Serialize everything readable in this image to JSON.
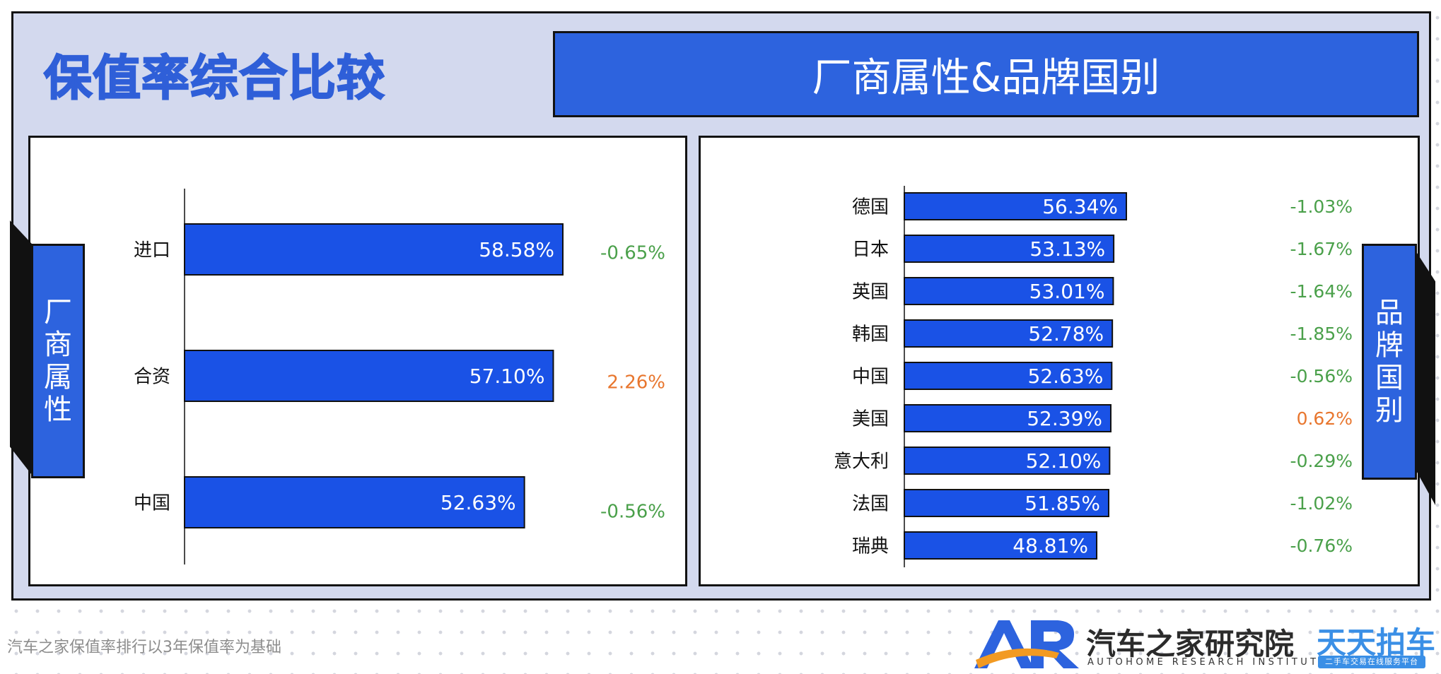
{
  "header": {
    "title": "保值率综合比较",
    "subtitle": "厂商属性&品牌国别"
  },
  "left_tab": [
    "厂",
    "商",
    "属",
    "性"
  ],
  "right_tab": [
    "品",
    "牌",
    "国",
    "别"
  ],
  "colors": {
    "bar": "#1a52e6",
    "accent": "#2d63de",
    "frame_bg": "#d3d9ee",
    "change_negative": "#4aa04a",
    "change_positive": "#e8762e"
  },
  "chart_data": [
    {
      "type": "bar",
      "orientation": "horizontal",
      "categories": [
        "进口",
        "合资",
        "中国"
      ],
      "values": [
        58.58,
        57.1,
        52.63
      ],
      "value_labels": [
        "58.58%",
        "57.10%",
        "52.63%"
      ],
      "changes": [
        "-0.65%",
        "2.26%",
        "-0.56%"
      ],
      "change_values": [
        -0.65,
        2.26,
        -0.56
      ],
      "grid": false,
      "legend": "none"
    },
    {
      "type": "bar",
      "orientation": "horizontal",
      "categories": [
        "德国",
        "日本",
        "英国",
        "韩国",
        "中国",
        "美国",
        "意大利",
        "法国",
        "瑞典"
      ],
      "values": [
        56.34,
        53.13,
        53.01,
        52.78,
        52.63,
        52.39,
        52.1,
        51.85,
        48.81
      ],
      "value_labels": [
        "56.34%",
        "53.13%",
        "53.01%",
        "52.78%",
        "52.63%",
        "52.39%",
        "52.10%",
        "51.85%",
        "48.81%"
      ],
      "changes": [
        "-1.03%",
        "-1.67%",
        "-1.64%",
        "-1.85%",
        "-0.56%",
        "0.62%",
        "-0.29%",
        "-1.02%",
        "-0.76%"
      ],
      "change_values": [
        -1.03,
        -1.67,
        -1.64,
        -1.85,
        -0.56,
        0.62,
        -0.29,
        -1.02,
        -0.76
      ],
      "grid": false,
      "legend": "none"
    }
  ],
  "footer": {
    "note": "汽车之家保值率排行以3年保值率为基础",
    "logo_name": "汽车之家研究院",
    "logo_en": "AUTOHOME RESEARCH INSTITUTE",
    "logo2_name": "天天拍车",
    "logo2_sub": "二手车交易在线服务平台"
  }
}
